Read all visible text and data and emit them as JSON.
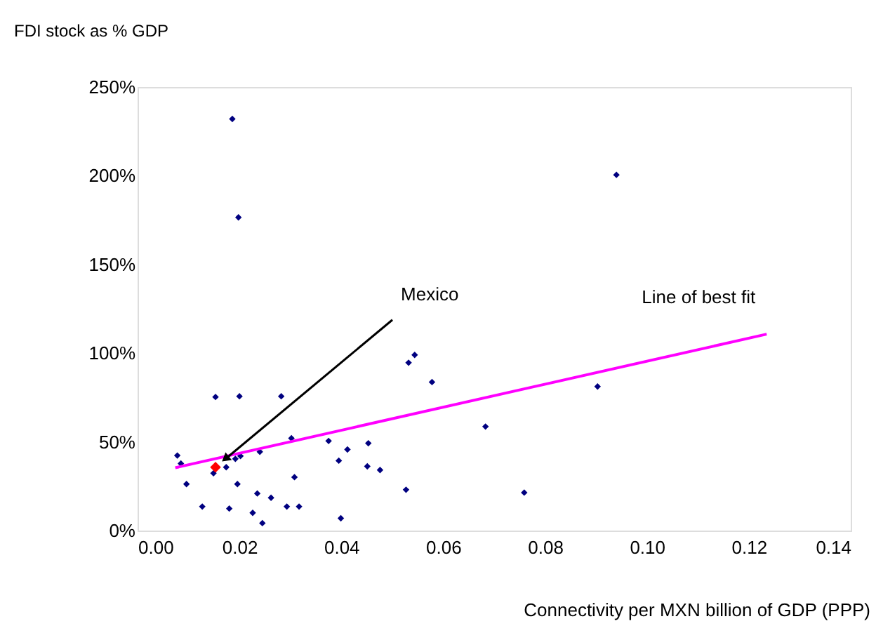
{
  "chart_data": {
    "type": "scatter",
    "xlabel": "Connectivity per MXN billion of GDP (PPP)",
    "ylabel": "FDI stock as % GDP",
    "xlim": [
      0,
      0.14
    ],
    "xticks": [
      {
        "value": 0,
        "label": "0.00"
      },
      {
        "value": 0.02,
        "label": "0.02"
      },
      {
        "value": 0.04,
        "label": "0.04"
      },
      {
        "value": 0.06,
        "label": "0.06"
      },
      {
        "value": 0.08,
        "label": "0.08"
      },
      {
        "value": 0.1,
        "label": "0.10"
      },
      {
        "value": 0.12,
        "label": "0.12"
      },
      {
        "value": 0.14,
        "label": "0.14"
      }
    ],
    "ylim": [
      0,
      250
    ],
    "yticks": [
      {
        "value": 0,
        "label": "0%"
      },
      {
        "value": 50,
        "label": "50%"
      },
      {
        "value": 100,
        "label": "100%"
      },
      {
        "value": 150,
        "label": "150%"
      },
      {
        "value": 200,
        "label": "200%"
      },
      {
        "value": 250,
        "label": "250%"
      }
    ],
    "grid": false,
    "series": [
      {
        "color": "#000080",
        "marker": "diamond",
        "x": [
          0.0186,
          0.0198,
          0.094,
          0.0153,
          0.02,
          0.0282,
          0.0532,
          0.0544,
          0.0578,
          0.0903,
          0.0683,
          0.0302,
          0.0078,
          0.0085,
          0.0096,
          0.0127,
          0.0149,
          0.0174,
          0.018,
          0.0192,
          0.0202,
          0.0196,
          0.0235,
          0.024,
          0.0226,
          0.0245,
          0.0262,
          0.0293,
          0.0317,
          0.0308,
          0.0375,
          0.0395,
          0.0412,
          0.0399,
          0.0453,
          0.0451,
          0.0476,
          0.0527,
          0.0759
        ],
        "values": [
          232,
          176.5,
          200.5,
          75.3,
          75.7,
          75.7,
          94.6,
          99,
          83.7,
          81.2,
          58.6,
          52,
          42.3,
          37.8,
          26.2,
          13.5,
          32.3,
          35.7,
          12.4,
          40.4,
          42,
          26.2,
          20.9,
          44.4,
          10,
          4.2,
          18.5,
          13.5,
          13.5,
          30.1,
          50.5,
          39.4,
          45.7,
          6.9,
          49.2,
          36.2,
          34.1,
          23,
          21.4
        ]
      },
      {
        "color": "#ff0000",
        "marker": "diamond",
        "x": [
          0.0153
        ],
        "values": [
          35.7
        ]
      },
      {
        "type": "line",
        "name": "Line of best fit",
        "color": "#ff00ff",
        "marker": "none",
        "line_style": "solid",
        "x": [
          0.0074,
          0.1235
        ],
        "values": [
          35.4,
          110.7
        ]
      }
    ],
    "annotations": [
      {
        "text": "Mexico",
        "x": 0.0153,
        "y": 35.7
      }
    ]
  }
}
